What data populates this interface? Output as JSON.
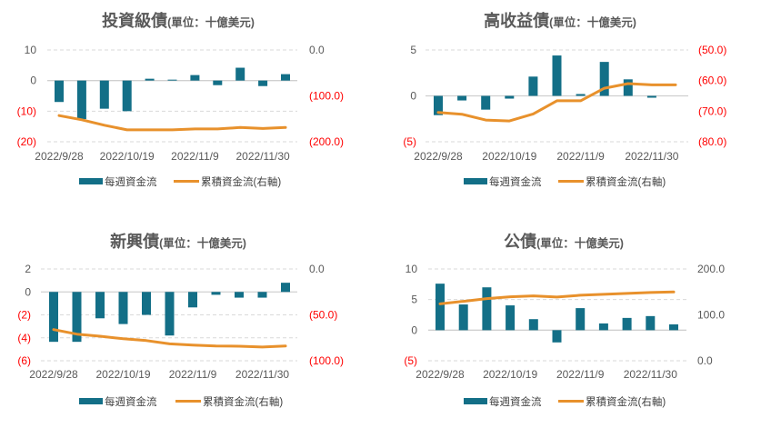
{
  "colors": {
    "bar": "#136f87",
    "line": "#e8912c",
    "grid": "#d9d9d9",
    "axis_text": "#595959",
    "negative_text": "#ff0000"
  },
  "legend": {
    "bar_label": "每週資金流",
    "line_label": "累積資金流(右軸)"
  },
  "chart_data": [
    {
      "type": "bar+line",
      "title": "投資級債",
      "unit": "(單位：十億美元)",
      "x_tick_labels": [
        "2022/9/28",
        "2022/10/19",
        "2022/11/9",
        "2022/11/30"
      ],
      "y_left": {
        "ylim": [
          -20,
          10
        ],
        "tick_labels": [
          "10",
          "0",
          "(10)",
          "(20)"
        ],
        "ticks": [
          10,
          0,
          -10,
          -20
        ]
      },
      "y_right": {
        "ylim": [
          -200,
          0
        ],
        "tick_labels": [
          "0.0",
          "(100.0)",
          "(200.0)"
        ],
        "ticks": [
          0,
          -100,
          -200
        ]
      },
      "series": [
        {
          "name": "每週資金流",
          "kind": "bar",
          "axis": "left",
          "values": [
            -7.0,
            -12.6,
            -9.2,
            -10.0,
            0.6,
            0.3,
            1.8,
            -1.5,
            4.2,
            -1.8,
            2.1
          ]
        },
        {
          "name": "累積資金流(右軸)",
          "kind": "line",
          "axis": "right",
          "values": [
            -143,
            -152,
            -164,
            -174,
            -174,
            -174,
            -172,
            -172,
            -169,
            -171,
            -169
          ]
        }
      ],
      "grid": true,
      "legend_position": "bottom"
    },
    {
      "type": "bar+line",
      "title": "高收益債",
      "unit": "(單位：十億美元)",
      "x_tick_labels": [
        "2022/9/28",
        "2022/10/19",
        "2022/11/9",
        "2022/11/30"
      ],
      "y_left": {
        "ylim": [
          -5,
          5
        ],
        "tick_labels": [
          "5",
          "0",
          "(5)"
        ],
        "ticks": [
          5,
          0,
          -5
        ]
      },
      "y_right": {
        "ylim": [
          -80,
          -50
        ],
        "tick_labels": [
          "(50.0)",
          "(60.0)",
          "(70.0)",
          "(80.0)"
        ],
        "ticks": [
          -50,
          -60,
          -70,
          -80
        ]
      },
      "series": [
        {
          "name": "每週資金流",
          "kind": "bar",
          "axis": "left",
          "values": [
            -2.1,
            -0.5,
            -1.5,
            -0.3,
            2.1,
            4.4,
            0.2,
            3.7,
            1.8,
            -0.2,
            0.0
          ]
        },
        {
          "name": "累積資金流(右軸)",
          "kind": "line",
          "axis": "right",
          "values": [
            -70.4,
            -71.0,
            -72.9,
            -73.2,
            -70.9,
            -66.6,
            -66.6,
            -62.5,
            -61.0,
            -61.4,
            -61.4
          ]
        }
      ],
      "grid": true,
      "legend_position": "bottom"
    },
    {
      "type": "bar+line",
      "title": "新興債",
      "unit": "(單位：十億美元)",
      "x_tick_labels": [
        "2022/9/28",
        "2022/10/19",
        "2022/11/9",
        "2022/11/30"
      ],
      "y_left": {
        "ylim": [
          -6,
          2
        ],
        "tick_labels": [
          "2",
          "0",
          "(2)",
          "(4)",
          "(6)"
        ],
        "ticks": [
          2,
          0,
          -2,
          -4,
          -6
        ]
      },
      "y_right": {
        "ylim": [
          -100,
          0
        ],
        "tick_labels": [
          "0.0",
          "(50.0)",
          "(100.0)"
        ],
        "ticks": [
          0,
          -50,
          -100
        ]
      },
      "series": [
        {
          "name": "每週資金流",
          "kind": "bar",
          "axis": "left",
          "values": [
            -4.35,
            -4.35,
            -2.3,
            -2.8,
            -2.0,
            -3.8,
            -1.35,
            -0.25,
            -0.5,
            -0.5,
            0.8
          ]
        },
        {
          "name": "累積資金流(右軸)",
          "kind": "line",
          "axis": "right",
          "values": [
            -66,
            -71,
            -73.3,
            -76,
            -78,
            -81.6,
            -83,
            -84,
            -84.2,
            -85,
            -84
          ]
        }
      ],
      "grid": true,
      "legend_position": "bottom"
    },
    {
      "type": "bar+line",
      "title": "公債",
      "unit": "(單位：十億美元)",
      "x_tick_labels": [
        "2022/9/28",
        "2022/10/19",
        "2022/11/9",
        "2022/11/30"
      ],
      "y_left": {
        "ylim": [
          -5,
          10
        ],
        "tick_labels": [
          "10",
          "5",
          "0",
          "(5)"
        ],
        "ticks": [
          10,
          5,
          0,
          -5
        ]
      },
      "y_right": {
        "ylim": [
          0,
          200
        ],
        "tick_labels": [
          "200.0",
          "100.0",
          "0.0"
        ],
        "ticks": [
          200,
          100,
          0
        ]
      },
      "series": [
        {
          "name": "每週資金流",
          "kind": "bar",
          "axis": "left",
          "values": [
            7.6,
            4.2,
            7.0,
            4.05,
            1.8,
            -2.0,
            3.6,
            1.1,
            2.0,
            2.3,
            0.95
          ]
        },
        {
          "name": "累積資金流(右軸)",
          "kind": "line",
          "axis": "right",
          "values": [
            124,
            129.6,
            135.5,
            139.4,
            141.4,
            138.8,
            142.7,
            144.7,
            146.7,
            148.7,
            150
          ]
        }
      ],
      "grid": true,
      "legend_position": "bottom"
    }
  ]
}
